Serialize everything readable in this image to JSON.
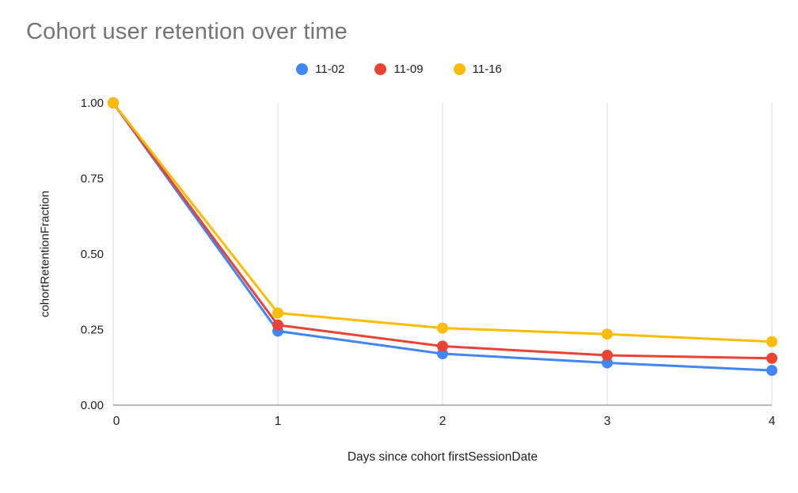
{
  "chart_data": {
    "type": "line",
    "title": "Cohort user retention over time",
    "xlabel": "Days since cohort firstSessionDate",
    "ylabel": "cohortRetentionFraction",
    "x": [
      0,
      1,
      2,
      3,
      4
    ],
    "x_ticks": [
      "0",
      "1",
      "2",
      "3",
      "4"
    ],
    "y_ticks": [
      "0.00",
      "0.25",
      "0.50",
      "0.75",
      "1.00"
    ],
    "xlim": [
      0,
      4
    ],
    "ylim": [
      0,
      1
    ],
    "grid": "vertical-major",
    "legend_position": "top",
    "series": [
      {
        "name": "11-02",
        "color": "#4285F4",
        "values": [
          1.0,
          0.245,
          0.17,
          0.14,
          0.115
        ]
      },
      {
        "name": "11-09",
        "color": "#EA4335",
        "values": [
          1.0,
          0.265,
          0.195,
          0.165,
          0.155
        ]
      },
      {
        "name": "11-16",
        "color": "#FBBC04",
        "values": [
          1.0,
          0.305,
          0.255,
          0.235,
          0.21
        ]
      }
    ],
    "colors": {
      "background": "#ffffff",
      "title_text": "#757575",
      "axis_text": "#202124",
      "gridline": "#dadce0",
      "axis_line": "#757575"
    }
  }
}
